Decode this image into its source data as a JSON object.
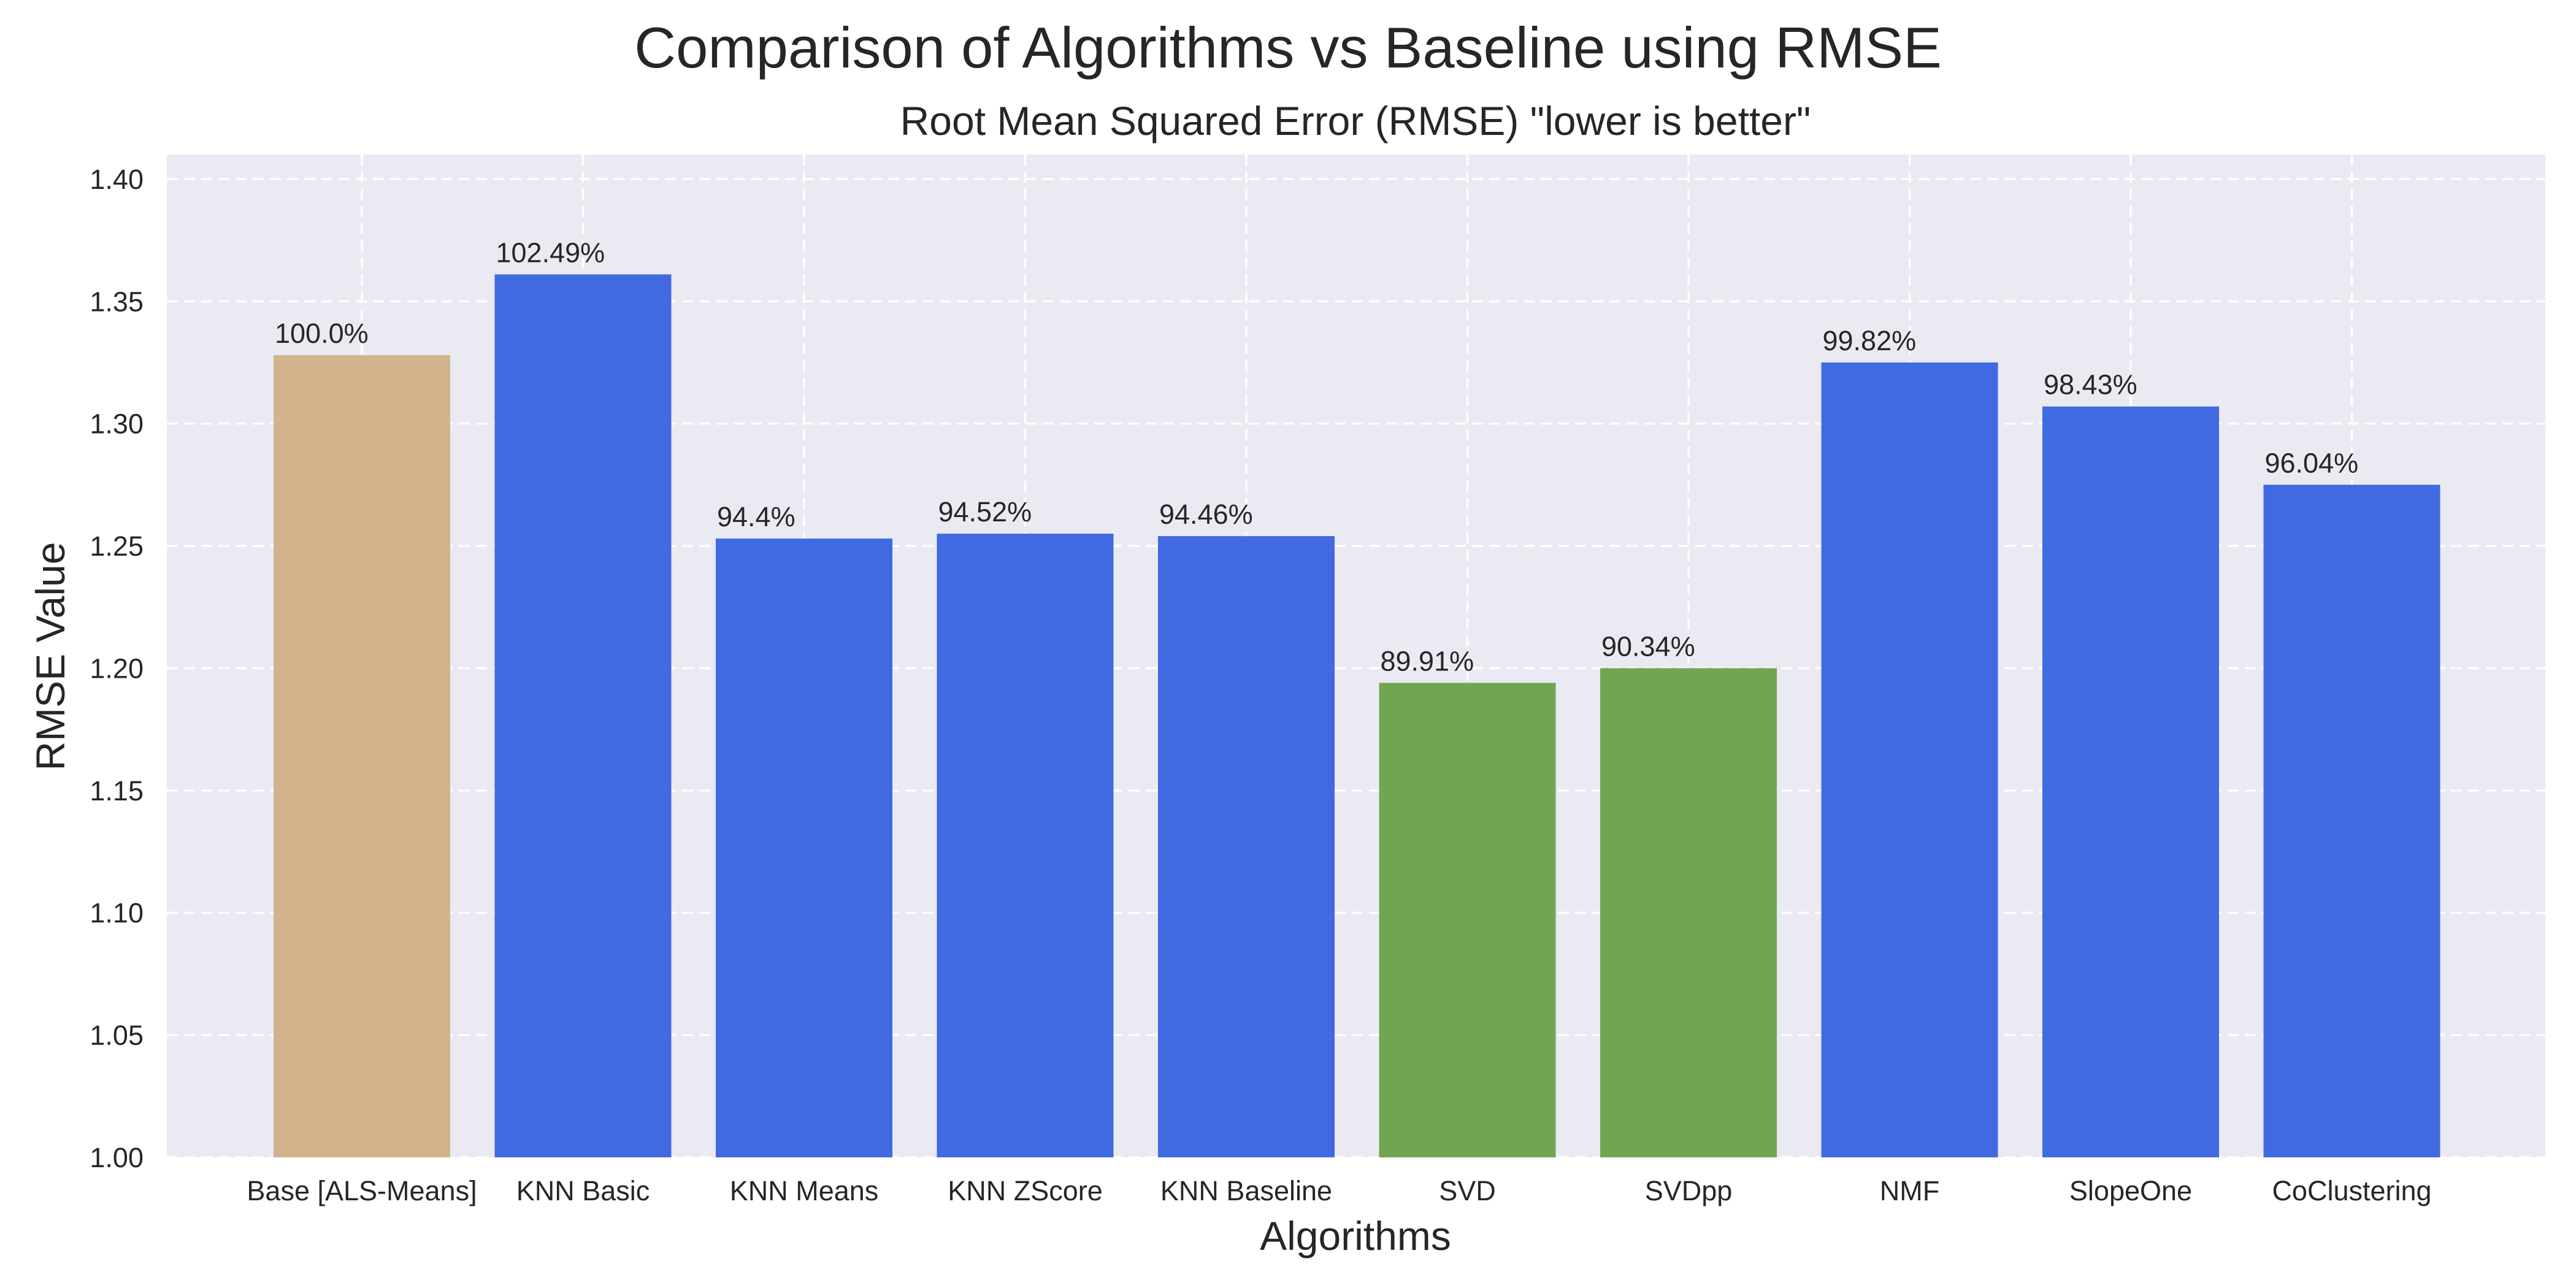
{
  "chart_data": {
    "type": "bar",
    "title": "Comparison of Algorithms vs Baseline using RMSE",
    "subtitle": "Root Mean Squared Error (RMSE) \"lower is better\"",
    "xlabel": "Algorithms",
    "ylabel": "RMSE Value",
    "ylim": [
      1.0,
      1.41
    ],
    "yticks": [
      "1.00",
      "1.05",
      "1.10",
      "1.15",
      "1.20",
      "1.25",
      "1.30",
      "1.35",
      "1.40"
    ],
    "grid": true,
    "categories": [
      "Base [ALS-Means]",
      "KNN Basic",
      "KNN Means",
      "KNN ZScore",
      "KNN Baseline",
      "SVD",
      "SVDpp",
      "NMF",
      "SlopeOne",
      "CoClustering"
    ],
    "values": [
      1.328,
      1.361,
      1.253,
      1.255,
      1.254,
      1.194,
      1.2,
      1.325,
      1.307,
      1.275
    ],
    "data_labels": [
      "100.0%",
      "102.49%",
      "94.4%",
      "94.52%",
      "94.46%",
      "89.91%",
      "90.34%",
      "99.82%",
      "98.43%",
      "96.04%"
    ],
    "colors": [
      "#d2b48c",
      "#4169e1",
      "#4169e1",
      "#4169e1",
      "#4169e1",
      "#72a551",
      "#72a551",
      "#4169e1",
      "#4169e1",
      "#4169e1"
    ],
    "background_color": "#eaeaf2"
  }
}
